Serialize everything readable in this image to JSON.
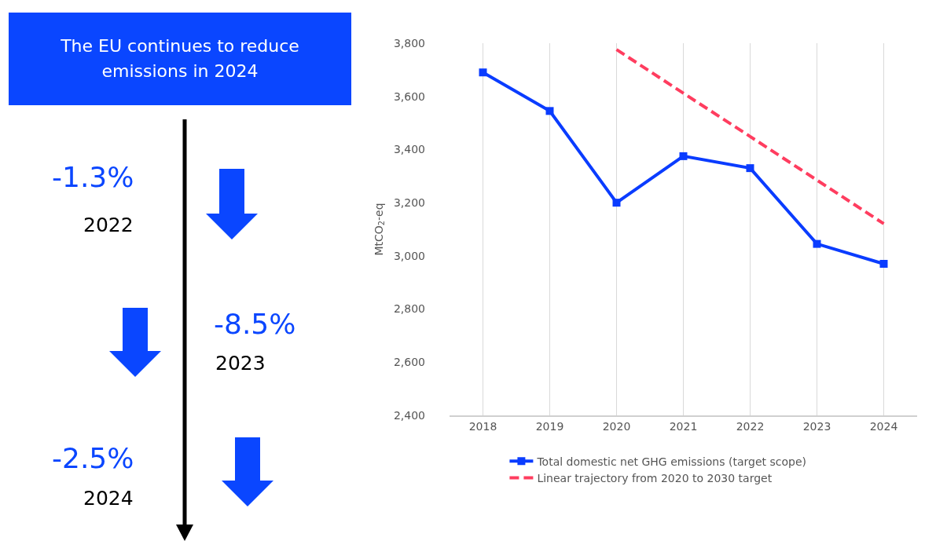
{
  "chart_data": {
    "type": "line",
    "title": "The EU continues to reduce emissions in 2024",
    "ylabel": "MtCO$_{2}$-eq",
    "categories": [
      "2018",
      "2019",
      "2020",
      "2021",
      "2022",
      "2023",
      "2024"
    ],
    "series": [
      {
        "name": "Total domestic net GHG emissions (target scope)",
        "color": "#0a3cff",
        "marker": "square",
        "line_style": "solid",
        "values": [
          3690,
          3545,
          3200,
          3375,
          3330,
          3045,
          2970
        ]
      },
      {
        "name": "Linear trajectory from 2020 to 2030 target",
        "color": "#ff3d5f",
        "marker": "none",
        "line_style": "dashed",
        "values": [
          null,
          null,
          3776,
          3612,
          3449,
          3285,
          3121
        ]
      }
    ],
    "ylim": [
      2400,
      3800
    ],
    "yticks": [
      {
        "value": 2400,
        "label": "2,400"
      },
      {
        "value": 2600,
        "label": "2,600"
      },
      {
        "value": 2800,
        "label": "2,800"
      },
      {
        "value": 3000,
        "label": "3,000"
      },
      {
        "value": 3200,
        "label": "3,200"
      },
      {
        "value": 3400,
        "label": "3,400"
      },
      {
        "value": 3600,
        "label": "3,600"
      },
      {
        "value": 3800,
        "label": "3,800"
      }
    ],
    "grid": "x",
    "legend": "bottom",
    "annotations": [
      "-1.3%",
      "2022",
      "-8.5%",
      "2023",
      "-2.5%",
      "2024"
    ]
  }
}
